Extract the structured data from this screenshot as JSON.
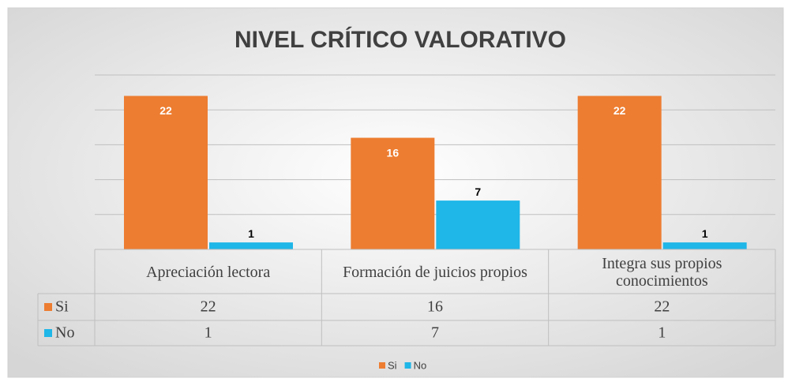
{
  "chart_data": {
    "type": "bar",
    "title": "NIVEL CRÍTICO VALORATIVO",
    "categories": [
      "Apreciación lectora",
      "Formación de juicios propios",
      "Integra sus propios conocimientos"
    ],
    "series": [
      {
        "name": "Si",
        "color": "#ed7d31",
        "values": [
          22,
          16,
          22
        ]
      },
      {
        "name": "No",
        "color": "#1fb6e8",
        "values": [
          1,
          7,
          1
        ]
      }
    ],
    "ylim": [
      0,
      25
    ],
    "yticks": [
      0,
      5,
      10,
      15,
      20,
      25
    ],
    "grid": true,
    "legend": "bottom",
    "data_table": true
  }
}
